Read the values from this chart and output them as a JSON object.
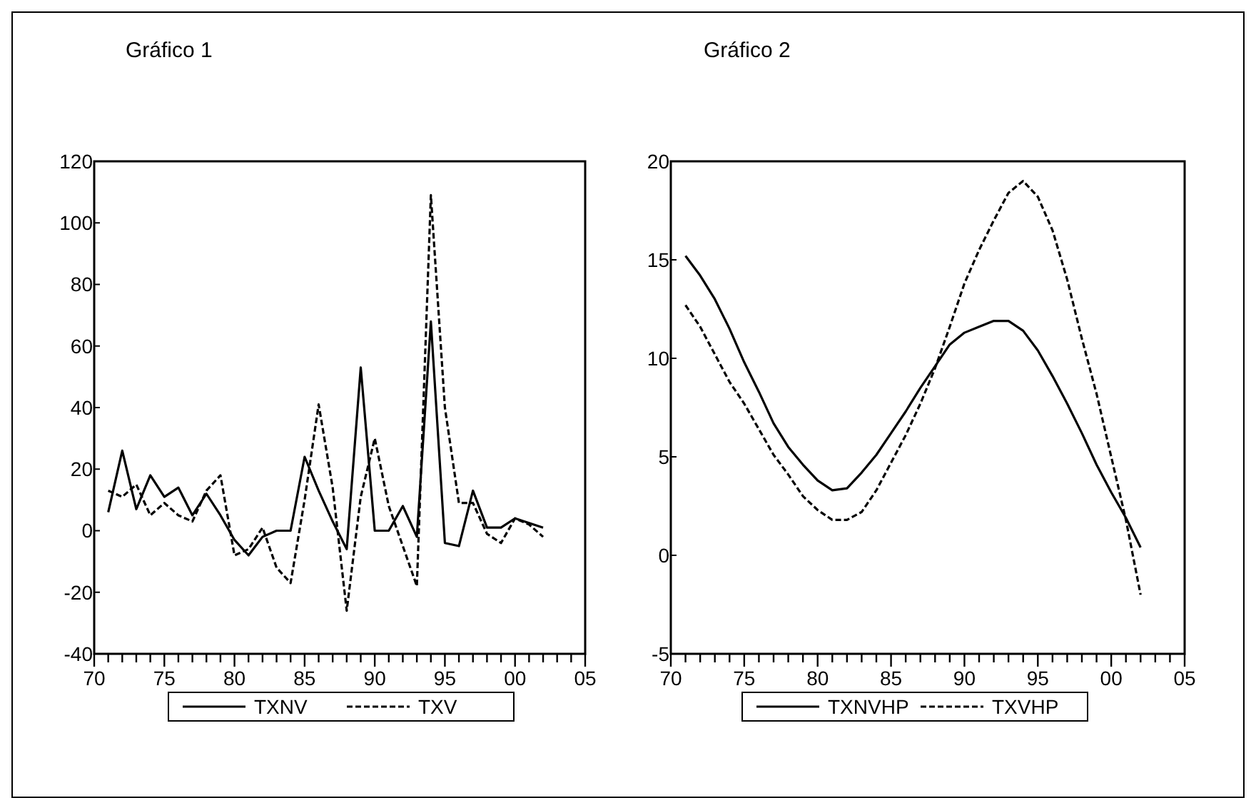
{
  "chart_data": [
    {
      "type": "line",
      "title": "Gráfico 1",
      "x": [
        1971,
        1972,
        1973,
        1974,
        1975,
        1976,
        1977,
        1978,
        1979,
        1980,
        1981,
        1982,
        1983,
        1984,
        1985,
        1986,
        1987,
        1988,
        1989,
        1990,
        1991,
        1992,
        1993,
        1994,
        1995,
        1996,
        1997,
        1998,
        1999,
        2000,
        2001,
        2002
      ],
      "series": [
        {
          "name": "TXNV",
          "color": "#000000",
          "line_style": "solid",
          "values": [
            6,
            26,
            7,
            18,
            11,
            14,
            5,
            12,
            5,
            -3,
            -8,
            -2,
            0,
            0,
            24,
            13,
            3,
            -6,
            53,
            0,
            0,
            8,
            -2,
            68,
            -4,
            -5,
            13,
            1,
            1,
            4,
            2.5,
            1
          ]
        },
        {
          "name": "TXV",
          "color": "#000000",
          "line_style": "dashed",
          "values": [
            13,
            11,
            15,
            5,
            9,
            5,
            3,
            13,
            18,
            -8,
            -6,
            1,
            -12,
            -17,
            10,
            41,
            14,
            -26,
            11,
            30,
            8,
            -5,
            -18,
            109,
            40,
            9,
            9,
            -1,
            -4,
            4,
            2,
            -2
          ]
        }
      ],
      "xlim": [
        1970,
        2005
      ],
      "xticks": [
        {
          "value": 1970,
          "label": "70"
        },
        {
          "value": 1971,
          "label": null
        },
        {
          "value": 1972,
          "label": null
        },
        {
          "value": 1973,
          "label": null
        },
        {
          "value": 1974,
          "label": null
        },
        {
          "value": 1975,
          "label": "75"
        },
        {
          "value": 1976,
          "label": null
        },
        {
          "value": 1977,
          "label": null
        },
        {
          "value": 1978,
          "label": null
        },
        {
          "value": 1979,
          "label": null
        },
        {
          "value": 1980,
          "label": "80"
        },
        {
          "value": 1981,
          "label": null
        },
        {
          "value": 1982,
          "label": null
        },
        {
          "value": 1983,
          "label": null
        },
        {
          "value": 1984,
          "label": null
        },
        {
          "value": 1985,
          "label": "85"
        },
        {
          "value": 1986,
          "label": null
        },
        {
          "value": 1987,
          "label": null
        },
        {
          "value": 1988,
          "label": null
        },
        {
          "value": 1989,
          "label": null
        },
        {
          "value": 1990,
          "label": "90"
        },
        {
          "value": 1991,
          "label": null
        },
        {
          "value": 1992,
          "label": null
        },
        {
          "value": 1993,
          "label": null
        },
        {
          "value": 1994,
          "label": null
        },
        {
          "value": 1995,
          "label": "95"
        },
        {
          "value": 1996,
          "label": null
        },
        {
          "value": 1997,
          "label": null
        },
        {
          "value": 1998,
          "label": null
        },
        {
          "value": 1999,
          "label": null
        },
        {
          "value": 2000,
          "label": "00"
        },
        {
          "value": 2001,
          "label": null
        },
        {
          "value": 2002,
          "label": null
        },
        {
          "value": 2003,
          "label": null
        },
        {
          "value": 2004,
          "label": null
        },
        {
          "value": 2005,
          "label": "05"
        }
      ],
      "ylim": [
        -40,
        120
      ],
      "yticks": [
        -40,
        -20,
        0,
        20,
        40,
        60,
        80,
        100,
        120
      ],
      "grid": false,
      "legend": "bottom",
      "marker": "none"
    },
    {
      "type": "line",
      "title": "Gráfico 2",
      "x": [
        1971,
        1972,
        1973,
        1974,
        1975,
        1976,
        1977,
        1978,
        1979,
        1980,
        1981,
        1982,
        1983,
        1984,
        1985,
        1986,
        1987,
        1988,
        1989,
        1990,
        1991,
        1992,
        1993,
        1994,
        1995,
        1996,
        1997,
        1998,
        1999,
        2000,
        2001,
        2002
      ],
      "series": [
        {
          "name": "TXNVHP",
          "color": "#000000",
          "line_style": "solid",
          "values": [
            15.2,
            14.2,
            13.0,
            11.5,
            9.8,
            8.3,
            6.7,
            5.5,
            4.6,
            3.8,
            3.3,
            3.4,
            4.2,
            5.1,
            6.2,
            7.3,
            8.5,
            9.6,
            10.7,
            11.3,
            11.6,
            11.9,
            11.9,
            11.4,
            10.4,
            9.1,
            7.7,
            6.2,
            4.6,
            3.2,
            1.9,
            0.4
          ]
        },
        {
          "name": "TXVHP",
          "color": "#000000",
          "line_style": "dashed",
          "values": [
            12.7,
            11.6,
            10.2,
            8.8,
            7.7,
            6.4,
            5.1,
            4.1,
            3.0,
            2.3,
            1.8,
            1.8,
            2.2,
            3.3,
            4.7,
            6.1,
            7.7,
            9.5,
            11.6,
            13.8,
            15.5,
            17.0,
            18.4,
            19.0,
            18.2,
            16.5,
            14.0,
            11.0,
            8.2,
            5.0,
            1.8,
            -2.0
          ]
        }
      ],
      "xlim": [
        1970,
        2005
      ],
      "xticks": [
        {
          "value": 1970,
          "label": "70"
        },
        {
          "value": 1971,
          "label": null
        },
        {
          "value": 1972,
          "label": null
        },
        {
          "value": 1973,
          "label": null
        },
        {
          "value": 1974,
          "label": null
        },
        {
          "value": 1975,
          "label": "75"
        },
        {
          "value": 1976,
          "label": null
        },
        {
          "value": 1977,
          "label": null
        },
        {
          "value": 1978,
          "label": null
        },
        {
          "value": 1979,
          "label": null
        },
        {
          "value": 1980,
          "label": "80"
        },
        {
          "value": 1981,
          "label": null
        },
        {
          "value": 1982,
          "label": null
        },
        {
          "value": 1983,
          "label": null
        },
        {
          "value": 1984,
          "label": null
        },
        {
          "value": 1985,
          "label": "85"
        },
        {
          "value": 1986,
          "label": null
        },
        {
          "value": 1987,
          "label": null
        },
        {
          "value": 1988,
          "label": null
        },
        {
          "value": 1989,
          "label": null
        },
        {
          "value": 1990,
          "label": "90"
        },
        {
          "value": 1991,
          "label": null
        },
        {
          "value": 1992,
          "label": null
        },
        {
          "value": 1993,
          "label": null
        },
        {
          "value": 1994,
          "label": null
        },
        {
          "value": 1995,
          "label": "95"
        },
        {
          "value": 1996,
          "label": null
        },
        {
          "value": 1997,
          "label": null
        },
        {
          "value": 1998,
          "label": null
        },
        {
          "value": 1999,
          "label": null
        },
        {
          "value": 2000,
          "label": "00"
        },
        {
          "value": 2001,
          "label": null
        },
        {
          "value": 2002,
          "label": null
        },
        {
          "value": 2003,
          "label": null
        },
        {
          "value": 2004,
          "label": null
        },
        {
          "value": 2005,
          "label": "05"
        }
      ],
      "ylim": [
        -5,
        20
      ],
      "yticks": [
        -5,
        0,
        5,
        10,
        15,
        20
      ],
      "grid": false,
      "legend": "bottom",
      "marker": "none"
    }
  ]
}
